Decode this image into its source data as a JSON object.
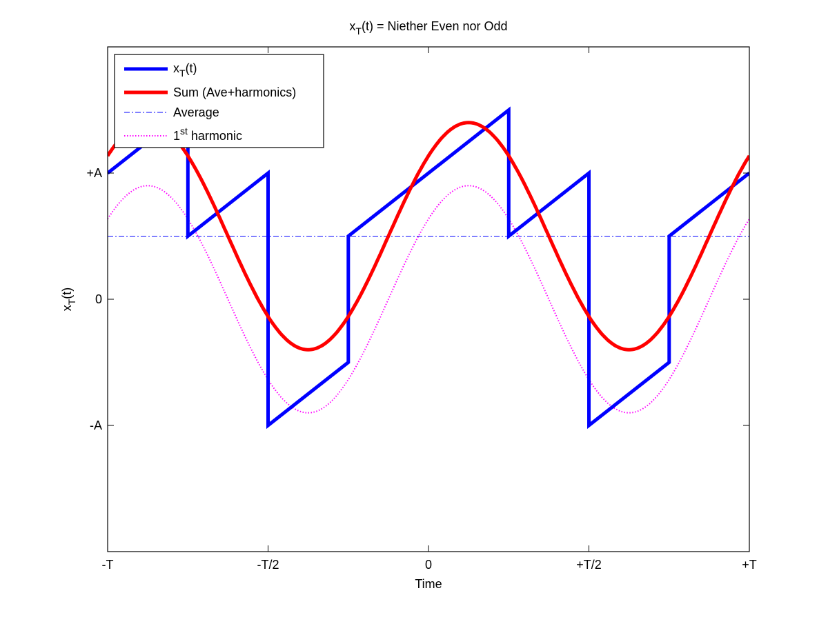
{
  "chart_data": {
    "type": "line",
    "title": "x_T(t) = Niether Even nor Odd",
    "title_parts": {
      "base": "x",
      "sub": "T",
      "rest": "(t) = Niether Even nor Odd"
    },
    "xlabel": "Time",
    "ylabel": "x_T(t)",
    "ylabel_parts": {
      "base": "x",
      "sub": "T",
      "rest": "(t)"
    },
    "x_ticks": [
      "-T",
      "-T/2",
      "0",
      "+T/2",
      "+T"
    ],
    "x_tick_values": [
      -1,
      -0.5,
      0,
      0.5,
      1
    ],
    "y_ticks": [
      "-A",
      "0",
      "+A"
    ],
    "y_tick_values": [
      -1,
      0,
      1
    ],
    "xlim": [
      -1,
      1
    ],
    "ylim": [
      -2,
      2
    ],
    "x_units": "T",
    "y_units": "A",
    "grid": false,
    "legend_position": "upper-left",
    "series": [
      {
        "name": "x_T(t)",
        "legend_parts": {
          "base": "x",
          "sub": "T",
          "rest": "(t)"
        },
        "color": "#0000ff",
        "style": "solid-thick",
        "description": "Piecewise-linear periodic sawtooth-like signal with slope 2A/T and jumps at t = ±T/4, ±T/2, ±3T/4",
        "x": [
          -1,
          -0.75,
          -0.75,
          -0.5,
          -0.5,
          -0.25,
          -0.25,
          0.25,
          0.25,
          0.5,
          0.5,
          0.75,
          0.75,
          1
        ],
        "y": [
          1,
          1.5,
          0.5,
          1,
          -1,
          -0.5,
          0.5,
          1.5,
          0.5,
          1,
          -1,
          -0.5,
          0.5,
          1
        ]
      },
      {
        "name": "Sum (Ave+harmonics)",
        "color": "#ff0000",
        "style": "solid-thick",
        "formula": "0.5 + 0.9*cos(2*pi*(t - 0.125))",
        "x": [
          -1,
          -0.875,
          -0.625,
          -0.375,
          -0.125,
          0.125,
          0.375,
          0.625,
          0.875,
          1
        ],
        "y": [
          1.14,
          1.4,
          0.5,
          -0.4,
          0.5,
          1.4,
          0.5,
          -0.4,
          0.5,
          1.14
        ]
      },
      {
        "name": "Average",
        "color": "#0000ff",
        "style": "dash-dot-thin",
        "x": [
          -1,
          1
        ],
        "y": [
          0.5,
          0.5
        ]
      },
      {
        "name": "1st harmonic",
        "legend_parts": {
          "base": "1",
          "sup": "st",
          "rest": " harmonic"
        },
        "color": "#ff00ff",
        "style": "dotted",
        "formula": "0.9*cos(2*pi*(t - 0.125))",
        "x": [
          -1,
          -0.875,
          -0.625,
          -0.375,
          -0.125,
          0.125,
          0.375,
          0.625,
          0.875,
          1
        ],
        "y": [
          0.64,
          0.9,
          0,
          -0.9,
          0,
          0.9,
          0,
          -0.9,
          0,
          0.64
        ]
      }
    ]
  }
}
